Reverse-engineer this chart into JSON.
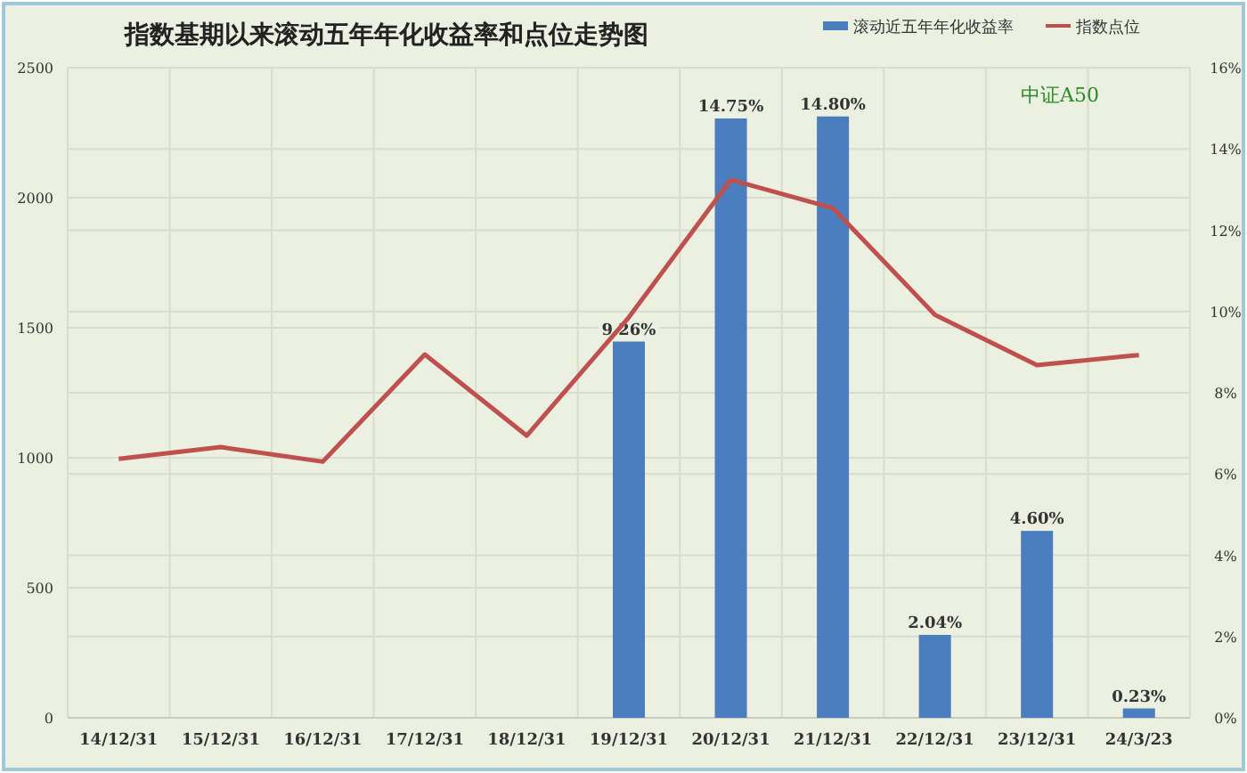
{
  "chart_data": {
    "type": "bar",
    "title": "指数基期以来滚动五年年化收益率和点位走势图",
    "categories": [
      "14/12/31",
      "15/12/31",
      "16/12/31",
      "17/12/31",
      "18/12/31",
      "19/12/31",
      "20/12/31",
      "21/12/31",
      "22/12/31",
      "23/12/31",
      "24/3/23"
    ],
    "series": [
      {
        "name": "滚动近五年年化收益率",
        "axis": "y2",
        "color": "#4a7ebf",
        "values": [
          null,
          null,
          null,
          null,
          null,
          9.26,
          14.75,
          14.8,
          2.04,
          4.6,
          0.23
        ],
        "value_labels": [
          null,
          null,
          null,
          null,
          null,
          "9.26%",
          "14.75%",
          "14.80%",
          "2.04%",
          "4.60%",
          "0.23%"
        ]
      },
      {
        "name": "指数点位",
        "type": "line",
        "color": "#c0504d",
        "values": [
          996,
          1041,
          985,
          1397,
          1085,
          1540,
          2069,
          1960,
          1550,
          1356,
          1395
        ]
      }
    ],
    "ylim": [
      0,
      2500
    ],
    "yticks": [
      0,
      500,
      1000,
      1500,
      2000,
      2500
    ],
    "y2lim": [
      0,
      16
    ],
    "y2ticks": [
      {
        "value": 0,
        "label": "0%"
      },
      {
        "value": 2,
        "label": "2%"
      },
      {
        "value": 4,
        "label": "4%"
      },
      {
        "value": 6,
        "label": "6%"
      },
      {
        "value": 8,
        "label": "8%"
      },
      {
        "value": 10,
        "label": "10%"
      },
      {
        "value": 12,
        "label": "12%"
      },
      {
        "value": 14,
        "label": "14%"
      },
      {
        "value": 16,
        "label": "16%"
      }
    ],
    "grid": true,
    "legend": "top right",
    "annotations": [
      "中证A50"
    ]
  }
}
